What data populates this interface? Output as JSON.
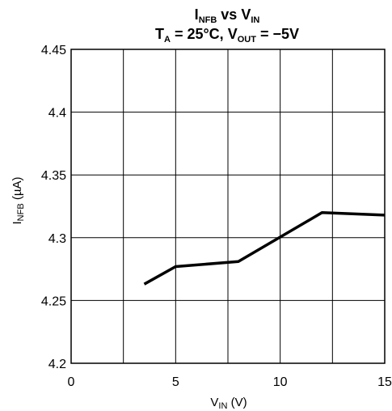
{
  "chart_data": {
    "type": "line",
    "title": {
      "line1": {
        "main": "I",
        "sub": "NFB",
        "mid": " vs V",
        "sub2": "IN"
      },
      "line2": {
        "t": "T",
        "t_sub": "A",
        "t_rest": " = 25°C, V",
        "v_sub": "OUT",
        "v_rest": " = −5V"
      }
    },
    "xlabel": {
      "main": "V",
      "sub": "IN",
      "rest": " (V)"
    },
    "ylabel": {
      "main": "I",
      "sub": "NFB",
      "rest": " (µA)"
    },
    "xlim": [
      0,
      15
    ],
    "ylim": [
      4.2,
      4.45
    ],
    "x_ticks": [
      0,
      2.5,
      5,
      7.5,
      10,
      12.5,
      15
    ],
    "x_tick_labels": [
      "0",
      "",
      "5",
      "",
      "10",
      "",
      "15"
    ],
    "y_ticks": [
      4.2,
      4.25,
      4.3,
      4.35,
      4.4,
      4.45
    ],
    "y_tick_labels": [
      "4.2",
      "4.25",
      "4.3",
      "4.35",
      "4.4",
      "4.45"
    ],
    "grid": true,
    "series": [
      {
        "x": [
          3.5,
          5,
          8,
          12,
          15
        ],
        "y": [
          4.263,
          4.277,
          4.281,
          4.32,
          4.318
        ]
      }
    ]
  }
}
